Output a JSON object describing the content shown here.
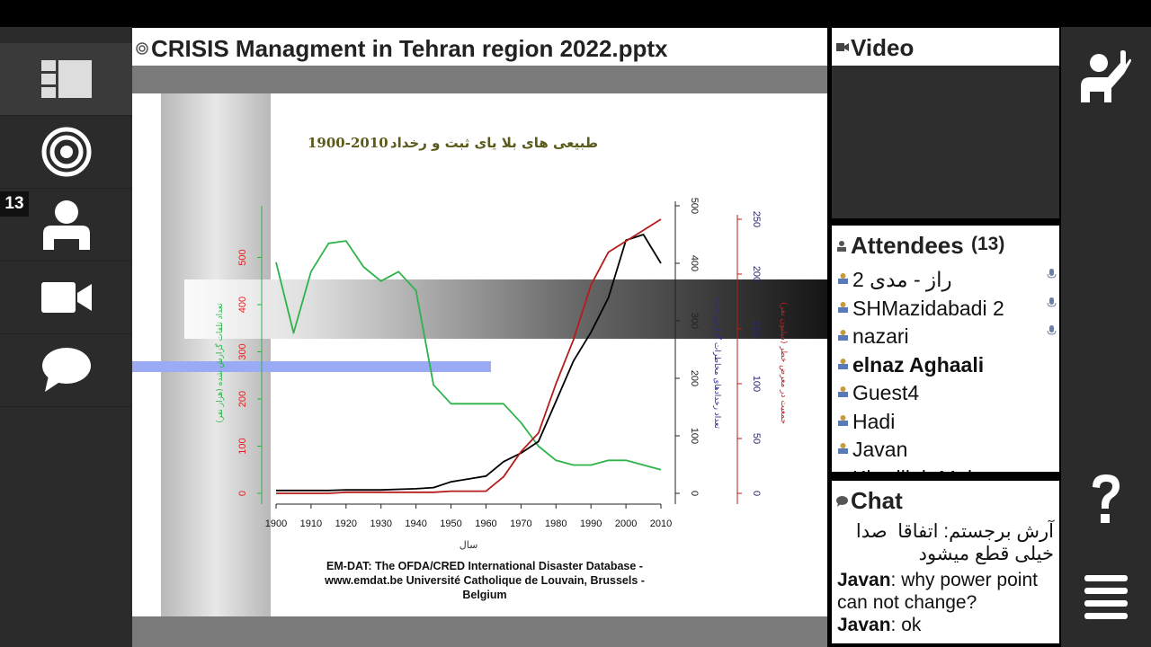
{
  "presentation": {
    "filename": "CRISIS Managment in Tehran region 2022.pptx",
    "slide": {
      "title_fa": "طبیعی های بلا یای ثبت و رخداد",
      "title_years": "1900-2010",
      "source": "EM-DAT: The OFDA/CRED International Disaster Database - www.emdat.be Université Catholique de Louvain, Brussels - Belgium"
    }
  },
  "chart_data": {
    "type": "line",
    "x": [
      1900,
      1905,
      1910,
      1915,
      1920,
      1925,
      1930,
      1935,
      1940,
      1945,
      1950,
      1955,
      1960,
      1965,
      1970,
      1975,
      1980,
      1985,
      1990,
      1995,
      2000,
      2005,
      2010
    ],
    "xticks": [
      "1900",
      "1910",
      "1920",
      "1930",
      "1940",
      "1950",
      "1960",
      "1970",
      "1980",
      "1990",
      "2000",
      "2010"
    ],
    "xlabel": "سال",
    "series": [
      {
        "name": "تعداد تلفات گزارش شده (هزار نفر)",
        "color": "#2db34a",
        "axis": "left",
        "values": [
          490,
          340,
          470,
          530,
          535,
          480,
          450,
          470,
          430,
          230,
          190,
          190,
          190,
          190,
          150,
          100,
          70,
          60,
          60,
          70,
          70,
          60,
          50
        ]
      },
      {
        "name": "تعداد رخدادهای مخاطرات گزارش شده",
        "color": "#000000",
        "axis": "right1",
        "values": [
          5,
          5,
          5,
          5,
          6,
          6,
          6,
          7,
          8,
          10,
          20,
          25,
          30,
          55,
          70,
          90,
          160,
          230,
          280,
          340,
          440,
          450,
          400
        ]
      },
      {
        "name": "جمعیت در معرض خطر (میلیون نفر)",
        "color": "#b51c1c",
        "axis": "right2",
        "values": [
          0,
          0,
          0,
          0,
          1,
          1,
          1,
          1,
          1,
          1,
          2,
          2,
          2,
          15,
          38,
          55,
          100,
          140,
          190,
          220,
          230,
          240,
          250
        ]
      }
    ],
    "y_left": {
      "ticks": [
        "0",
        "100",
        "200",
        "300",
        "400",
        "500"
      ],
      "ylim": [
        0,
        600
      ],
      "color": "#e02020",
      "label": "تعداد تلفات گزارش شده (هزار نفر)"
    },
    "y_right1": {
      "ticks": [
        "0",
        "100",
        "200",
        "300",
        "400",
        "500"
      ],
      "ylim": [
        0,
        500
      ],
      "color": "#222",
      "label": "تعداد رخدادهای مخاطرات گزارش شده"
    },
    "y_right2": {
      "ticks": [
        "0",
        "50",
        "100",
        "150",
        "200",
        "250"
      ],
      "ylim": [
        0,
        250
      ],
      "color": "#2a2a6a",
      "label": "جمعیت در معرض خطر (میلیون نفر)"
    }
  },
  "left_rail": {
    "badge": "13",
    "items": [
      {
        "icon": "layout-icon"
      },
      {
        "icon": "target-icon"
      },
      {
        "icon": "user-icon"
      },
      {
        "icon": "video-camera-icon"
      },
      {
        "icon": "chat-bubble-icon"
      }
    ]
  },
  "right_rail": {
    "items": [
      {
        "icon": "raise-hand-icon"
      },
      {
        "icon": "help-icon"
      },
      {
        "icon": "menu-icon"
      }
    ]
  },
  "video": {
    "title": "Video"
  },
  "attendees": {
    "title": "Attendees",
    "count": "(13)",
    "list": [
      {
        "name": "راز - مدی 2",
        "bold": false,
        "mic": true
      },
      {
        "name": "SHMazidabadi 2",
        "bold": false,
        "mic": true
      },
      {
        "name": "nazari",
        "bold": false,
        "mic": true
      },
      {
        "name": "elnaz Aghaali",
        "bold": true,
        "mic": false
      },
      {
        "name": "Guest4",
        "bold": false,
        "mic": false
      },
      {
        "name": "Hadi",
        "bold": false,
        "mic": false
      },
      {
        "name": "Javan",
        "bold": false,
        "mic": false
      },
      {
        "name": "Khadijeh Mohamm",
        "bold": false,
        "mic": false
      }
    ]
  },
  "chat": {
    "title": "Chat",
    "messages": [
      {
        "sender": "",
        "text": "آرش برجستم: اتفاقا ‌ صدا خیلی قطع میشود"
      },
      {
        "sender": "Javan",
        "text": ": why power point can not change?"
      },
      {
        "sender": "Javan",
        "text": ": ok"
      }
    ]
  }
}
